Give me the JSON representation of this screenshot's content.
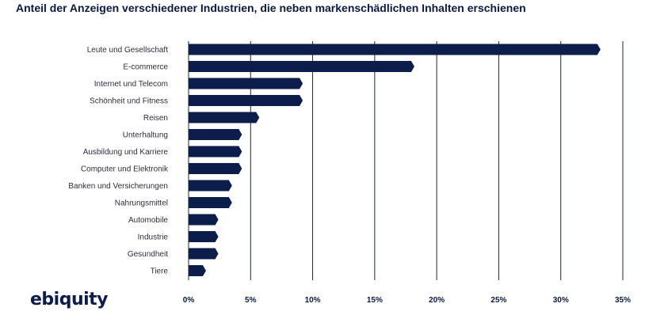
{
  "title": "Anteil der Anzeigen verschiedener Industrien, die neben markenschädlichen Inhalten erschienen",
  "logo": "ebiquity",
  "chart_data": {
    "type": "bar",
    "orientation": "horizontal",
    "categories": [
      "Leute und Gesellschaft",
      "E-commerce",
      "Internet und Telecom",
      "Schönheit und Fitness",
      "Reisen",
      "Unterhaltung",
      "Ausbildung und Karriere",
      "Computer und Elektronik",
      "Banken und Versicherungen",
      "Nahrungsmittel",
      "Automobile",
      "Industrie",
      "Gesundheit",
      "Tiere"
    ],
    "values": [
      33.2,
      18.2,
      9.2,
      9.2,
      5.7,
      4.3,
      4.3,
      4.3,
      3.5,
      3.5,
      2.4,
      2.4,
      2.4,
      1.4
    ],
    "x_ticks": [
      0,
      5,
      10,
      15,
      20,
      25,
      30,
      35
    ],
    "x_tick_labels": [
      "0%",
      "5%",
      "10%",
      "15%",
      "20%",
      "25%",
      "30%",
      "35%"
    ],
    "xlim": [
      0,
      35
    ],
    "bar_color": "#0d1d4b",
    "grid": "vertical",
    "legend": "none"
  }
}
